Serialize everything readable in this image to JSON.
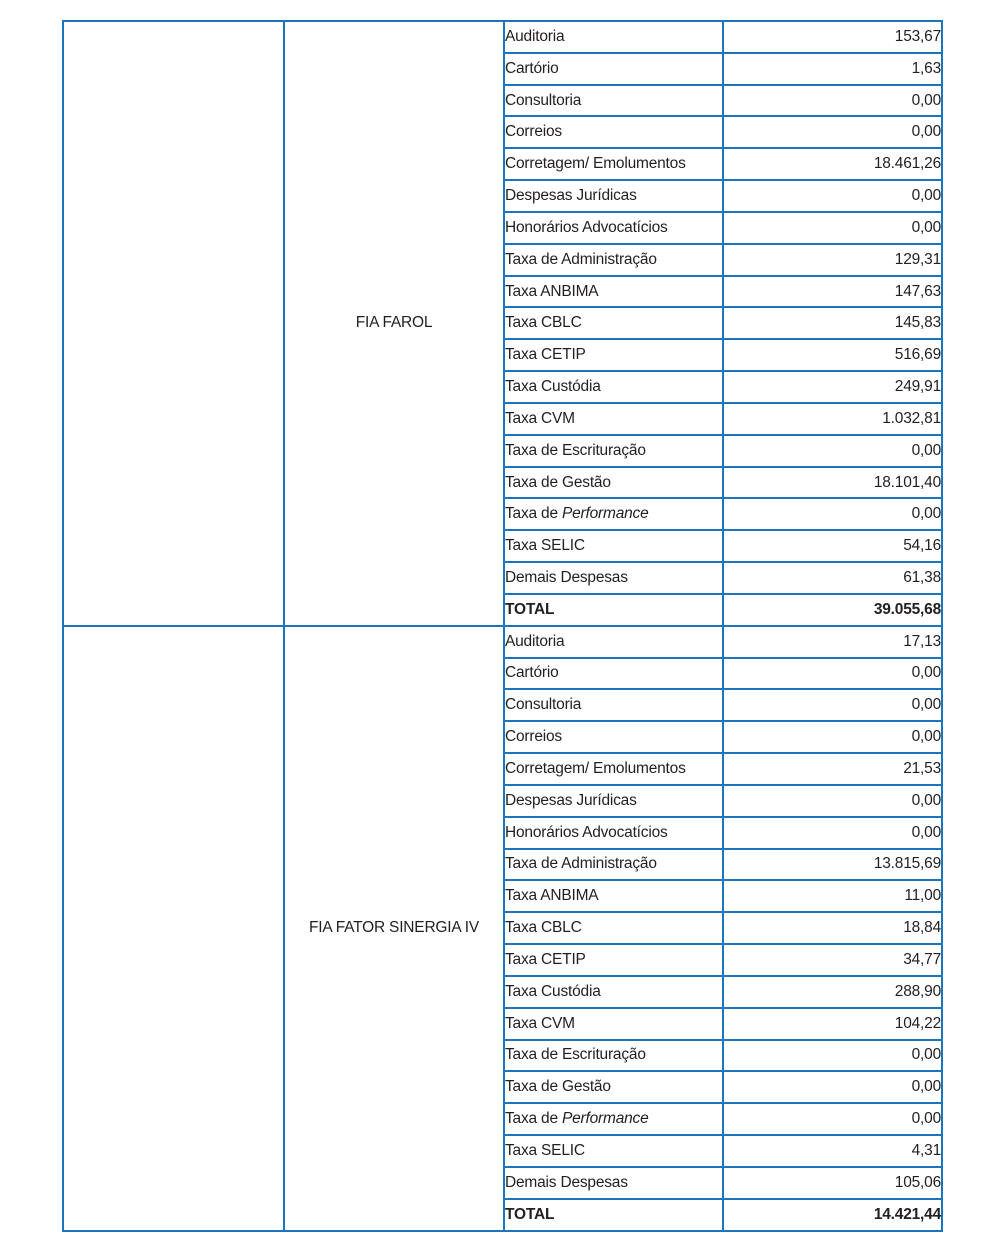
{
  "colors": {
    "border": "#1b75bc",
    "text": "#231f20"
  },
  "table": {
    "sections": [
      {
        "left_cell": "",
        "fund": "FIA FAROL",
        "rows": [
          {
            "label": "Auditoria",
            "value": "153,67"
          },
          {
            "label": "Cartório",
            "value": "1,63"
          },
          {
            "label": "Consultoria",
            "value": "0,00"
          },
          {
            "label": "Correios",
            "value": "0,00"
          },
          {
            "label": "Corretagem/ Emolumentos",
            "value": "18.461,26"
          },
          {
            "label": "Despesas Jurídicas",
            "value": "0,00"
          },
          {
            "label": "Honorários Advocatícios",
            "value": "0,00"
          },
          {
            "label": "Taxa de Administração",
            "value": "129,31"
          },
          {
            "label": "Taxa ANBIMA",
            "value": "147,63"
          },
          {
            "label": "Taxa CBLC",
            "value": "145,83"
          },
          {
            "label": "Taxa CETIP",
            "value": "516,69"
          },
          {
            "label": "Taxa Custódia",
            "value": "249,91"
          },
          {
            "label": "Taxa CVM",
            "value": "1.032,81"
          },
          {
            "label": "Taxa de Escrituração",
            "value": "0,00"
          },
          {
            "label": "Taxa de Gestão",
            "value": "18.101,40"
          },
          {
            "label": "Taxa de ",
            "label_italic": "Performance",
            "value": "0,00"
          },
          {
            "label": "Taxa SELIC",
            "value": "54,16"
          },
          {
            "label": "Demais Despesas",
            "value": "61,38"
          },
          {
            "label": "TOTAL",
            "value": "39.055,68",
            "total": true
          }
        ]
      },
      {
        "left_cell": "",
        "fund": "FIA FATOR SINERGIA IV",
        "rows": [
          {
            "label": "Auditoria",
            "value": "17,13"
          },
          {
            "label": "Cartório",
            "value": "0,00"
          },
          {
            "label": "Consultoria",
            "value": "0,00"
          },
          {
            "label": "Correios",
            "value": "0,00"
          },
          {
            "label": "Corretagem/ Emolumentos",
            "value": "21,53"
          },
          {
            "label": "Despesas Jurídicas",
            "value": "0,00"
          },
          {
            "label": "Honorários Advocatícios",
            "value": "0,00"
          },
          {
            "label": "Taxa de Administração",
            "value": "13.815,69"
          },
          {
            "label": "Taxa ANBIMA",
            "value": "11,00"
          },
          {
            "label": "Taxa CBLC",
            "value": "18,84"
          },
          {
            "label": "Taxa CETIP",
            "value": "34,77"
          },
          {
            "label": "Taxa Custódia",
            "value": "288,90"
          },
          {
            "label": "Taxa CVM",
            "value": "104,22"
          },
          {
            "label": "Taxa de Escrituração",
            "value": "0,00"
          },
          {
            "label": "Taxa de Gestão",
            "value": "0,00"
          },
          {
            "label": "Taxa de ",
            "label_italic": "Performance",
            "value": "0,00"
          },
          {
            "label": "Taxa SELIC",
            "value": "4,31"
          },
          {
            "label": "Demais Despesas",
            "value": "105,06"
          },
          {
            "label": "TOTAL",
            "value": "14.421,44",
            "total": true
          }
        ]
      }
    ]
  }
}
